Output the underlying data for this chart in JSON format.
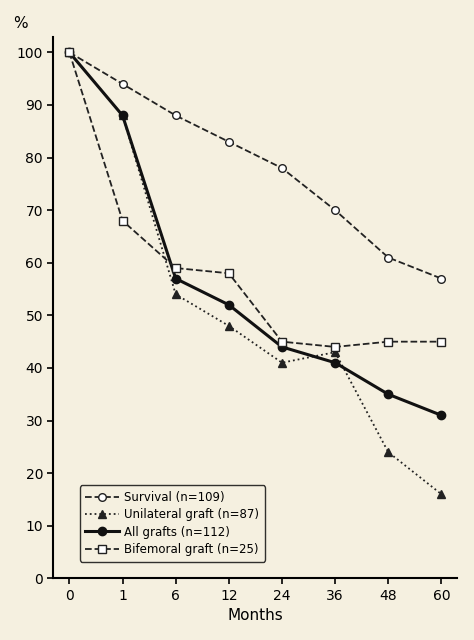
{
  "x_positions": [
    0,
    1,
    2,
    3,
    4,
    5,
    6,
    7
  ],
  "x_tick_labels": [
    "0",
    "1",
    "6",
    "12",
    "24",
    "36",
    "48",
    "60"
  ],
  "x_label": "Months",
  "y_label": "%",
  "ylim": [
    0,
    103
  ],
  "xlim": [
    -0.3,
    7.3
  ],
  "survival": {
    "x": [
      0,
      1,
      2,
      3,
      4,
      5,
      6,
      7
    ],
    "y": [
      100,
      94,
      88,
      83,
      78,
      70,
      61,
      57
    ],
    "label": "Survival (n=109)",
    "color": "#222222",
    "linestyle": "--",
    "marker": "o",
    "markerfacecolor": "white",
    "markeredgecolor": "#222222",
    "linewidth": 1.3,
    "markersize": 5.5
  },
  "unilateral": {
    "x": [
      0,
      1,
      2,
      3,
      4,
      5,
      6,
      7
    ],
    "y": [
      100,
      88,
      54,
      48,
      41,
      43,
      24,
      16
    ],
    "label": "Unilateral graft (n=87)",
    "color": "#222222",
    "linestyle": ":",
    "marker": "^",
    "markerfacecolor": "#222222",
    "markeredgecolor": "#222222",
    "linewidth": 1.3,
    "markersize": 5.5
  },
  "all_grafts": {
    "x": [
      0,
      1,
      2,
      3,
      4,
      5,
      6,
      7
    ],
    "y": [
      100,
      88,
      57,
      52,
      44,
      41,
      35,
      31
    ],
    "label": "All grafts (n=112)",
    "color": "#111111",
    "linestyle": "-",
    "marker": "o",
    "markerfacecolor": "#111111",
    "markeredgecolor": "#111111",
    "linewidth": 2.2,
    "markersize": 6
  },
  "bifemoral": {
    "x": [
      0,
      1,
      2,
      3,
      4,
      5,
      6,
      7
    ],
    "y": [
      100,
      68,
      59,
      58,
      45,
      44,
      45,
      45
    ],
    "label": "Bifemoral graft (n=25)",
    "color": "#222222",
    "linestyle": "--",
    "marker": "s",
    "markerfacecolor": "white",
    "markeredgecolor": "#222222",
    "linewidth": 1.3,
    "markersize": 5.5
  },
  "background_color": "#f5f0e0",
  "legend_fontsize": 8.5,
  "axis_label_fontsize": 11,
  "tick_fontsize": 10,
  "yticks": [
    0,
    10,
    20,
    30,
    40,
    50,
    60,
    70,
    80,
    90,
    100
  ]
}
